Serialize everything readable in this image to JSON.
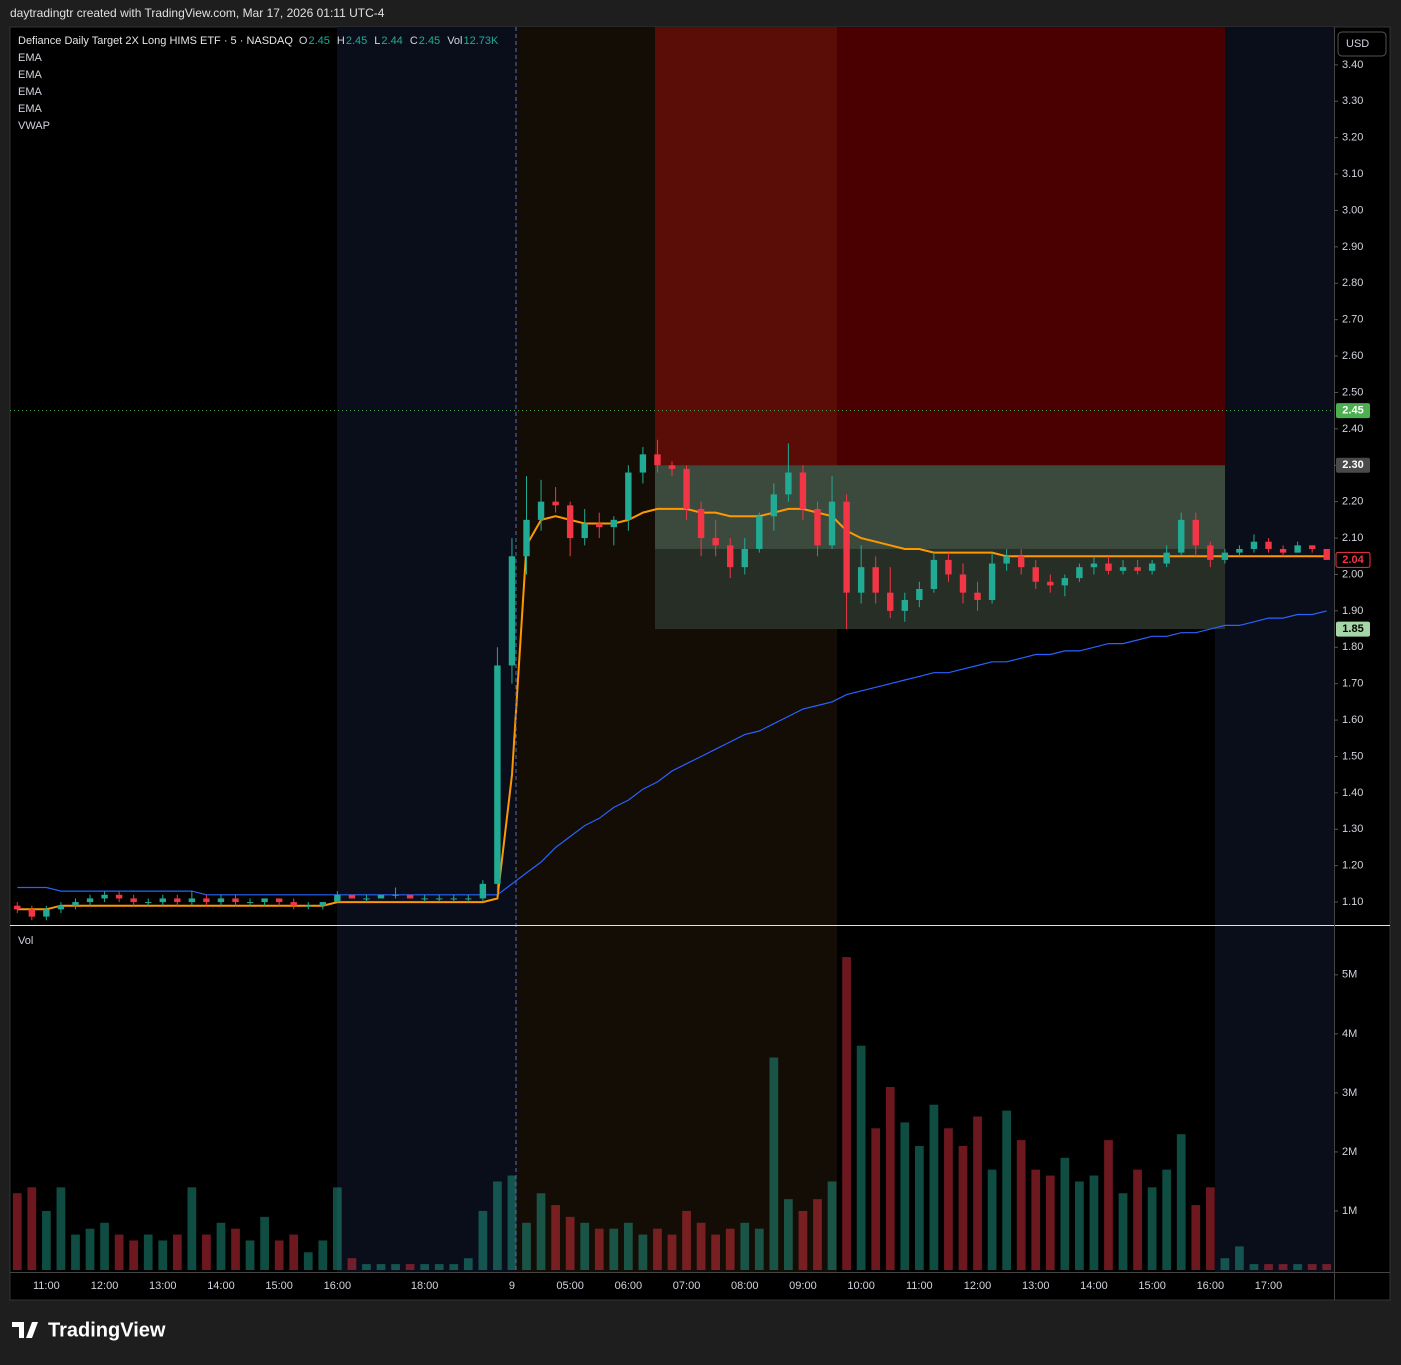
{
  "header": "daytradingtr created with TradingView.com, Mar 17, 2026 01:11 UTC-4",
  "footer": "TradingView",
  "chart_data": {
    "type": "candlestick",
    "title": "Defiance Daily Target 2X Long HIMS ETF · 5 · NASDAQ",
    "legend_values": [
      {
        "name": "O",
        "value": 2.45
      },
      {
        "name": "H",
        "value": 2.45
      },
      {
        "name": "L",
        "value": 2.44
      },
      {
        "name": "C",
        "value": 2.45
      },
      {
        "name": "Vol",
        "value": 12730,
        "value_label": "12.73K"
      }
    ],
    "indicators": [
      "EMA",
      "EMA",
      "EMA",
      "EMA",
      "VWAP"
    ],
    "currency": "USD",
    "up_color": "#22ab94",
    "down_color": "#f23645",
    "categories": [
      null,
      null,
      "11:00",
      null,
      null,
      null,
      "12:00",
      null,
      null,
      null,
      "13:00",
      null,
      null,
      null,
      "14:00",
      null,
      null,
      null,
      "15:00",
      null,
      null,
      null,
      "16:00",
      null,
      null,
      null,
      null,
      null,
      "18:00",
      null,
      null,
      null,
      null,
      null,
      "9",
      null,
      null,
      null,
      "05:00",
      null,
      null,
      null,
      "06:00",
      null,
      null,
      null,
      "07:00",
      null,
      null,
      null,
      "08:00",
      null,
      null,
      null,
      "09:00",
      null,
      null,
      null,
      "10:00",
      null,
      null,
      null,
      "11:00",
      null,
      null,
      null,
      "12:00",
      null,
      null,
      null,
      "13:00",
      null,
      null,
      null,
      "14:00",
      null,
      null,
      null,
      "15:00",
      null,
      null,
      null,
      "16:00",
      null,
      null,
      null,
      "17:00",
      null,
      null,
      null,
      null
    ],
    "open": [
      1.09,
      1.08,
      1.06,
      1.08,
      1.09,
      1.1,
      1.11,
      1.12,
      1.11,
      1.1,
      1.1,
      1.11,
      1.1,
      1.11,
      1.1,
      1.11,
      1.1,
      1.1,
      1.11,
      1.1,
      1.09,
      1.09,
      1.1,
      1.12,
      1.11,
      1.11,
      1.12,
      1.12,
      1.11,
      1.11,
      1.11,
      1.11,
      1.11,
      1.15,
      1.75,
      2.05,
      2.15,
      2.2,
      2.19,
      2.1,
      2.14,
      2.13,
      2.15,
      2.28,
      2.33,
      2.3,
      2.29,
      2.18,
      2.1,
      2.08,
      2.02,
      2.07,
      2.16,
      2.22,
      2.28,
      2.18,
      2.08,
      2.2,
      1.95,
      2.02,
      1.95,
      1.9,
      1.93,
      1.96,
      2.04,
      2.0,
      1.95,
      1.93,
      2.03,
      2.05,
      2.02,
      1.98,
      1.97,
      1.99,
      2.02,
      2.03,
      2.01,
      2.02,
      2.01,
      2.03,
      2.06,
      2.15,
      2.08,
      2.04,
      2.06,
      2.07,
      2.09,
      2.07,
      2.06,
      2.08,
      2.07
    ],
    "high": [
      1.1,
      1.09,
      1.09,
      1.1,
      1.11,
      1.12,
      1.13,
      1.13,
      1.12,
      1.11,
      1.12,
      1.12,
      1.13,
      1.12,
      1.12,
      1.12,
      1.11,
      1.11,
      1.11,
      1.11,
      1.1,
      1.1,
      1.13,
      1.12,
      1.12,
      1.12,
      1.14,
      1.12,
      1.12,
      1.12,
      1.12,
      1.12,
      1.16,
      1.8,
      2.1,
      2.27,
      2.26,
      2.24,
      2.2,
      2.18,
      2.17,
      2.16,
      2.3,
      2.35,
      2.37,
      2.31,
      2.3,
      2.2,
      2.15,
      2.1,
      2.1,
      2.17,
      2.25,
      2.36,
      2.3,
      2.2,
      2.27,
      2.22,
      2.08,
      2.05,
      2.02,
      1.95,
      1.98,
      2.06,
      2.06,
      2.03,
      1.98,
      2.06,
      2.07,
      2.07,
      2.04,
      2.0,
      2.0,
      2.03,
      2.05,
      2.05,
      2.04,
      2.04,
      2.04,
      2.08,
      2.17,
      2.17,
      2.09,
      2.07,
      2.08,
      2.11,
      2.1,
      2.08,
      2.09,
      2.08,
      2.07
    ],
    "low": [
      1.07,
      1.05,
      1.05,
      1.07,
      1.08,
      1.09,
      1.1,
      1.1,
      1.09,
      1.09,
      1.09,
      1.09,
      1.09,
      1.09,
      1.09,
      1.09,
      1.09,
      1.09,
      1.09,
      1.08,
      1.08,
      1.08,
      1.1,
      1.11,
      1.1,
      1.11,
      1.11,
      1.11,
      1.1,
      1.1,
      1.1,
      1.1,
      1.1,
      1.12,
      1.7,
      2.0,
      2.12,
      2.17,
      2.05,
      2.08,
      2.1,
      2.08,
      2.12,
      2.25,
      2.28,
      2.27,
      2.15,
      2.05,
      2.05,
      1.99,
      2.0,
      2.06,
      2.12,
      2.2,
      2.15,
      2.05,
      2.07,
      1.85,
      1.92,
      1.92,
      1.88,
      1.87,
      1.91,
      1.95,
      1.98,
      1.92,
      1.9,
      1.92,
      2.01,
      2.0,
      1.96,
      1.95,
      1.94,
      1.98,
      2.0,
      2.0,
      2.0,
      2.0,
      2.0,
      2.02,
      2.05,
      2.05,
      2.02,
      2.03,
      2.05,
      2.06,
      2.06,
      2.05,
      2.06,
      2.06,
      2.04
    ],
    "close": [
      1.08,
      1.06,
      1.08,
      1.09,
      1.1,
      1.11,
      1.12,
      1.11,
      1.1,
      1.1,
      1.11,
      1.1,
      1.11,
      1.1,
      1.11,
      1.1,
      1.1,
      1.11,
      1.1,
      1.09,
      1.09,
      1.1,
      1.12,
      1.11,
      1.11,
      1.12,
      1.12,
      1.11,
      1.11,
      1.11,
      1.11,
      1.11,
      1.15,
      1.75,
      2.05,
      2.15,
      2.2,
      2.19,
      2.1,
      2.14,
      2.13,
      2.15,
      2.28,
      2.33,
      2.3,
      2.29,
      2.18,
      2.1,
      2.08,
      2.02,
      2.07,
      2.16,
      2.22,
      2.28,
      2.18,
      2.08,
      2.2,
      1.95,
      2.02,
      1.95,
      1.9,
      1.93,
      1.96,
      2.04,
      2.0,
      1.95,
      1.93,
      2.03,
      2.05,
      2.02,
      1.98,
      1.97,
      1.99,
      2.02,
      2.03,
      2.01,
      2.02,
      2.01,
      2.03,
      2.06,
      2.15,
      2.08,
      2.04,
      2.06,
      2.07,
      2.09,
      2.07,
      2.06,
      2.08,
      2.07,
      2.04
    ],
    "overlays": [
      {
        "color": "#2962ff",
        "values": [
          1.14,
          1.14,
          1.14,
          1.13,
          1.13,
          1.13,
          1.13,
          1.13,
          1.13,
          1.13,
          1.13,
          1.13,
          1.13,
          1.12,
          1.12,
          1.12,
          1.12,
          1.12,
          1.12,
          1.12,
          1.12,
          1.12,
          1.12,
          1.12,
          1.12,
          1.12,
          1.12,
          1.12,
          1.12,
          1.12,
          1.12,
          1.12,
          1.12,
          1.12,
          1.15,
          1.18,
          1.21,
          1.25,
          1.28,
          1.31,
          1.33,
          1.36,
          1.38,
          1.41,
          1.43,
          1.46,
          1.48,
          1.5,
          1.52,
          1.54,
          1.56,
          1.57,
          1.59,
          1.61,
          1.63,
          1.64,
          1.65,
          1.67,
          1.68,
          1.69,
          1.7,
          1.71,
          1.72,
          1.73,
          1.73,
          1.74,
          1.75,
          1.76,
          1.76,
          1.77,
          1.78,
          1.78,
          1.79,
          1.79,
          1.8,
          1.81,
          1.81,
          1.82,
          1.83,
          1.83,
          1.84,
          1.84,
          1.85,
          1.86,
          1.86,
          1.87,
          1.88,
          1.88,
          1.89,
          1.89,
          1.9
        ]
      },
      {
        "color": "#ff9800",
        "values": [
          1.08,
          1.08,
          1.08,
          1.09,
          1.09,
          1.09,
          1.09,
          1.09,
          1.09,
          1.09,
          1.09,
          1.09,
          1.09,
          1.09,
          1.09,
          1.09,
          1.09,
          1.09,
          1.09,
          1.09,
          1.09,
          1.09,
          1.1,
          1.1,
          1.1,
          1.1,
          1.1,
          1.1,
          1.1,
          1.1,
          1.1,
          1.1,
          1.1,
          1.11,
          1.45,
          2.08,
          2.15,
          2.16,
          2.15,
          2.14,
          2.14,
          2.14,
          2.15,
          2.17,
          2.18,
          2.18,
          2.18,
          2.17,
          2.17,
          2.16,
          2.16,
          2.16,
          2.17,
          2.18,
          2.18,
          2.17,
          2.16,
          2.12,
          2.1,
          2.09,
          2.08,
          2.07,
          2.07,
          2.06,
          2.06,
          2.06,
          2.06,
          2.06,
          2.05,
          2.05,
          2.05,
          2.05,
          2.05,
          2.05,
          2.05,
          2.05,
          2.05,
          2.05,
          2.05,
          2.05,
          2.05,
          2.05,
          2.05,
          2.05,
          2.05,
          2.05,
          2.05,
          2.05,
          2.05,
          2.05,
          2.05
        ]
      }
    ],
    "ylim": [
      1.037,
      3.504
    ],
    "yticks": [
      {
        "value": 1.1,
        "label": "1.10"
      },
      {
        "value": 1.2,
        "label": "1.20"
      },
      {
        "value": 1.3,
        "label": "1.30"
      },
      {
        "value": 1.4,
        "label": "1.40"
      },
      {
        "value": 1.5,
        "label": "1.50"
      },
      {
        "value": 1.6,
        "label": "1.60"
      },
      {
        "value": 1.7,
        "label": "1.70"
      },
      {
        "value": 1.8,
        "label": "1.80"
      },
      {
        "value": 1.9,
        "label": "1.90"
      },
      {
        "value": 2.0,
        "label": "2.00"
      },
      {
        "value": 2.1,
        "label": "2.10"
      },
      {
        "value": 2.2,
        "label": "2.20"
      },
      {
        "value": 2.3,
        "label": "2.30"
      },
      {
        "value": 2.4,
        "label": "2.40"
      },
      {
        "value": 2.5,
        "label": "2.50"
      },
      {
        "value": 2.6,
        "label": "2.60"
      },
      {
        "value": 2.7,
        "label": "2.70"
      },
      {
        "value": 2.8,
        "label": "2.80"
      },
      {
        "value": 2.9,
        "label": "2.90"
      },
      {
        "value": 3.0,
        "label": "3.00"
      },
      {
        "value": 3.1,
        "label": "3.10"
      },
      {
        "value": 3.2,
        "label": "3.20"
      },
      {
        "value": 3.3,
        "label": "3.30"
      },
      {
        "value": 3.4,
        "label": "3.40"
      }
    ],
    "price_labels": [
      {
        "value": 2.45,
        "color": "#4caf50"
      },
      {
        "value": 2.3,
        "label": "2.30",
        "color": "#4a4a4a"
      },
      {
        "value": 2.04,
        "color": "#f23645"
      },
      {
        "value": 1.85,
        "color": "#a5d6a7"
      }
    ],
    "position_entry": 2.07,
    "volume": {
      "title": "Vol",
      "values": [
        1300000,
        1400000,
        1000000,
        1400000,
        600000,
        700000,
        800000,
        600000,
        500000,
        600000,
        500000,
        600000,
        1400000,
        600000,
        800000,
        700000,
        500000,
        900000,
        500000,
        600000,
        300000,
        500000,
        1400000,
        200000,
        100000,
        100000,
        100000,
        100000,
        100000,
        100000,
        100000,
        200000,
        1000000,
        1500000,
        1600000,
        800000,
        1300000,
        1100000,
        900000,
        800000,
        700000,
        700000,
        800000,
        600000,
        700000,
        600000,
        1000000,
        800000,
        600000,
        700000,
        800000,
        700000,
        3600000,
        1200000,
        1000000,
        1200000,
        1500000,
        5300000,
        3800000,
        2400000,
        3100000,
        2500000,
        2100000,
        2800000,
        2400000,
        2100000,
        2600000,
        1700000,
        2700000,
        2200000,
        1700000,
        1600000,
        1900000,
        1500000,
        1600000,
        2200000,
        1300000,
        1700000,
        1400000,
        1700000,
        2300000,
        1100000,
        1400000,
        200000,
        400000,
        100000,
        100000,
        100000,
        100000,
        100000,
        100000
      ],
      "ylim": [
        0,
        5810000
      ],
      "yticks": [
        {
          "value": 1000000,
          "label": "1M"
        },
        {
          "value": 2000000,
          "label": "2M"
        },
        {
          "value": 3000000,
          "label": "3M"
        },
        {
          "value": 4000000,
          "label": "4M"
        },
        {
          "value": 5000000,
          "label": "5M"
        }
      ]
    }
  }
}
